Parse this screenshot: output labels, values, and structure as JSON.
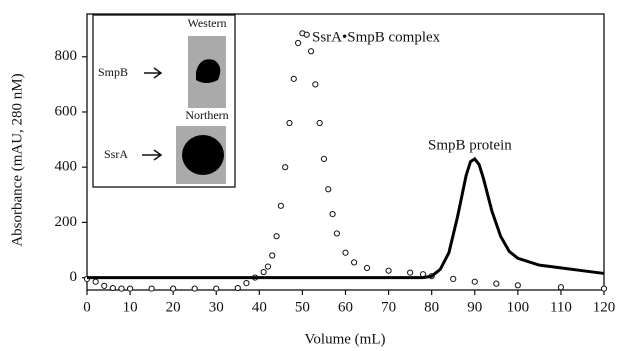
{
  "chart_data": {
    "type": "scatter-line",
    "xlabel": "Volume (mL)",
    "ylabel": "Absorbance (mAU, 280 nM)",
    "xlim": [
      0,
      120
    ],
    "ylim": [
      -45,
      955
    ],
    "xticks": [
      0,
      10,
      20,
      30,
      40,
      50,
      60,
      70,
      80,
      90,
      100,
      110,
      120
    ],
    "yticks": [
      0,
      200,
      400,
      600,
      800
    ],
    "series": [
      {
        "name": "SsrA•SmpB complex",
        "color": "#111111",
        "marker": "circle",
        "x": [
          0,
          2,
          4,
          6,
          8,
          10,
          15,
          20,
          25,
          30,
          35,
          37,
          39,
          41,
          42,
          43,
          44,
          45,
          46,
          47,
          48,
          49,
          50,
          51,
          52,
          53,
          54,
          55,
          56,
          57,
          58,
          60,
          62,
          65,
          70,
          75,
          78,
          80,
          85,
          90,
          95,
          100,
          110,
          120
        ],
        "values": [
          -5,
          -15,
          -30,
          -38,
          -40,
          -40,
          -40,
          -40,
          -40,
          -40,
          -38,
          -20,
          0,
          20,
          40,
          80,
          150,
          260,
          400,
          560,
          720,
          850,
          885,
          880,
          820,
          700,
          560,
          430,
          320,
          230,
          160,
          90,
          55,
          35,
          25,
          18,
          12,
          5,
          -5,
          -15,
          -22,
          -28,
          -35,
          -40
        ]
      },
      {
        "name": "SmpB protein",
        "color": "#000000",
        "marker": "line",
        "x": [
          0,
          10,
          20,
          30,
          40,
          50,
          60,
          70,
          75,
          78,
          80,
          82,
          84,
          86,
          88,
          89,
          90,
          91,
          92,
          94,
          96,
          98,
          100,
          105,
          110,
          115,
          120
        ],
        "values": [
          0,
          0,
          0,
          0,
          0,
          0,
          0,
          0,
          0,
          0,
          5,
          30,
          90,
          220,
          370,
          420,
          430,
          410,
          360,
          240,
          150,
          95,
          70,
          45,
          35,
          25,
          15
        ]
      }
    ],
    "inset": {
      "panels": [
        {
          "title": "Western",
          "label": "SmpB"
        },
        {
          "title": "Northern",
          "label": "SsrA"
        }
      ]
    }
  }
}
